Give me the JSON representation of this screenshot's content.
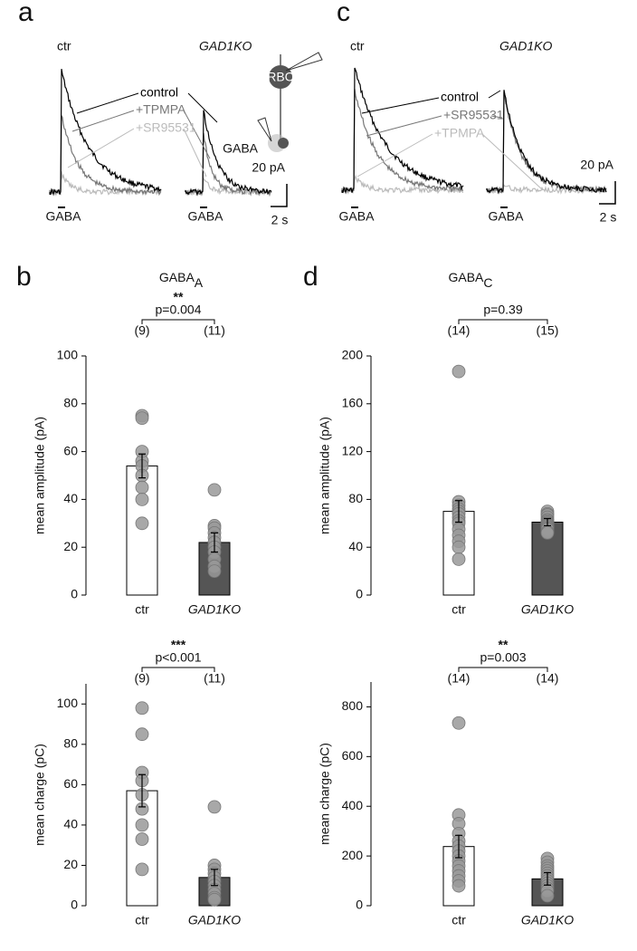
{
  "panels": [
    {
      "letter": "a",
      "left_label": "ctr",
      "right_label": "GAD1KO",
      "legend": [
        "control",
        "+TPMPA",
        "+SR95531"
      ],
      "legend_colors": [
        "#000000",
        "#777777",
        "#bbbbbb"
      ],
      "stimulus": "GABA",
      "scale_y": "20 pA",
      "scale_x": "2 s",
      "cell": "RBC",
      "pipette": "GABA"
    },
    {
      "letter": "c",
      "left_label": "ctr",
      "right_label": "GAD1KO",
      "legend": [
        "control",
        "+SR95531",
        "+TPMPA"
      ],
      "legend_colors": [
        "#000000",
        "#777777",
        "#bbbbbb"
      ],
      "stimulus": "GABA",
      "scale_y": "20 pA",
      "scale_x": "2 s"
    },
    {
      "letter": "b",
      "title": "GABA",
      "title_subscript": "A"
    },
    {
      "letter": "d",
      "title": "GABA",
      "title_subscript": "C"
    }
  ],
  "chart_data": [
    {
      "type": "bar",
      "ylabel": "mean amplitude (pA)",
      "categories": [
        "ctr",
        "GAD1KO"
      ],
      "category_styles": [
        "normal",
        "italic"
      ],
      "values": [
        54,
        22
      ],
      "errors": [
        5,
        4
      ],
      "colors": [
        "#ffffff",
        "#555555"
      ],
      "point_color": "#999999",
      "points": [
        [
          75,
          74,
          60,
          56,
          54,
          50,
          45,
          40,
          30
        ],
        [
          44,
          29,
          28,
          26,
          24,
          22,
          20,
          18,
          15,
          12,
          10
        ]
      ],
      "n_labels": [
        "(9)",
        "(11)"
      ],
      "stars": "**",
      "p_label": "p=0.004",
      "ylim": [
        0,
        100
      ],
      "yticks": [
        0,
        20,
        40,
        60,
        80,
        100
      ]
    },
    {
      "type": "bar",
      "ylabel": "mean charge  (pC)",
      "categories": [
        "ctr",
        "GAD1KO"
      ],
      "category_styles": [
        "normal",
        "italic"
      ],
      "values": [
        57,
        14
      ],
      "errors": [
        8,
        4
      ],
      "colors": [
        "#ffffff",
        "#555555"
      ],
      "point_color": "#999999",
      "points": [
        [
          98,
          85,
          66,
          62,
          55,
          48,
          40,
          33,
          18
        ],
        [
          49,
          20,
          18,
          16,
          14,
          12,
          10,
          8,
          6,
          4,
          3
        ]
      ],
      "n_labels": [
        "(9)",
        "(11)"
      ],
      "stars": "***",
      "p_label": "p<0.001",
      "ylim": [
        0,
        110
      ],
      "yticks": [
        0,
        20,
        40,
        60,
        80,
        100
      ]
    },
    {
      "type": "bar",
      "ylabel": "mean amplitude (pA)",
      "categories": [
        "ctr",
        "GAD1KO"
      ],
      "category_styles": [
        "normal",
        "italic"
      ],
      "values": [
        70,
        61
      ],
      "errors": [
        9,
        3
      ],
      "colors": [
        "#ffffff",
        "#555555"
      ],
      "point_color": "#999999",
      "points": [
        [
          187,
          78,
          75,
          72,
          70,
          68,
          65,
          62,
          60,
          55,
          50,
          45,
          40,
          30
        ],
        [
          70,
          68,
          67,
          65,
          63,
          62,
          61,
          60,
          59,
          58,
          57,
          56,
          55,
          53,
          52
        ]
      ],
      "n_labels": [
        "(14)",
        "(15)"
      ],
      "p_label": "p=0.39",
      "ylim": [
        0,
        200
      ],
      "yticks": [
        0,
        40,
        80,
        120,
        160,
        200
      ]
    },
    {
      "type": "bar",
      "ylabel": "mean charge  (pC)",
      "categories": [
        "ctr",
        "GAD1KO"
      ],
      "category_styles": [
        "normal",
        "italic"
      ],
      "values": [
        238,
        108
      ],
      "errors": [
        45,
        25
      ],
      "colors": [
        "#ffffff",
        "#555555"
      ],
      "point_color": "#999999",
      "points": [
        [
          735,
          365,
          330,
          290,
          260,
          240,
          220,
          200,
          180,
          160,
          140,
          120,
          100,
          80
        ],
        [
          190,
          175,
          160,
          150,
          140,
          130,
          120,
          110,
          100,
          90,
          80,
          70,
          60,
          40
        ]
      ],
      "n_labels": [
        "(14)",
        "(14)"
      ],
      "stars": "**",
      "p_label": "p=0.003",
      "ylim": [
        0,
        900
      ],
      "yticks": [
        0,
        200,
        400,
        600,
        800
      ]
    }
  ]
}
